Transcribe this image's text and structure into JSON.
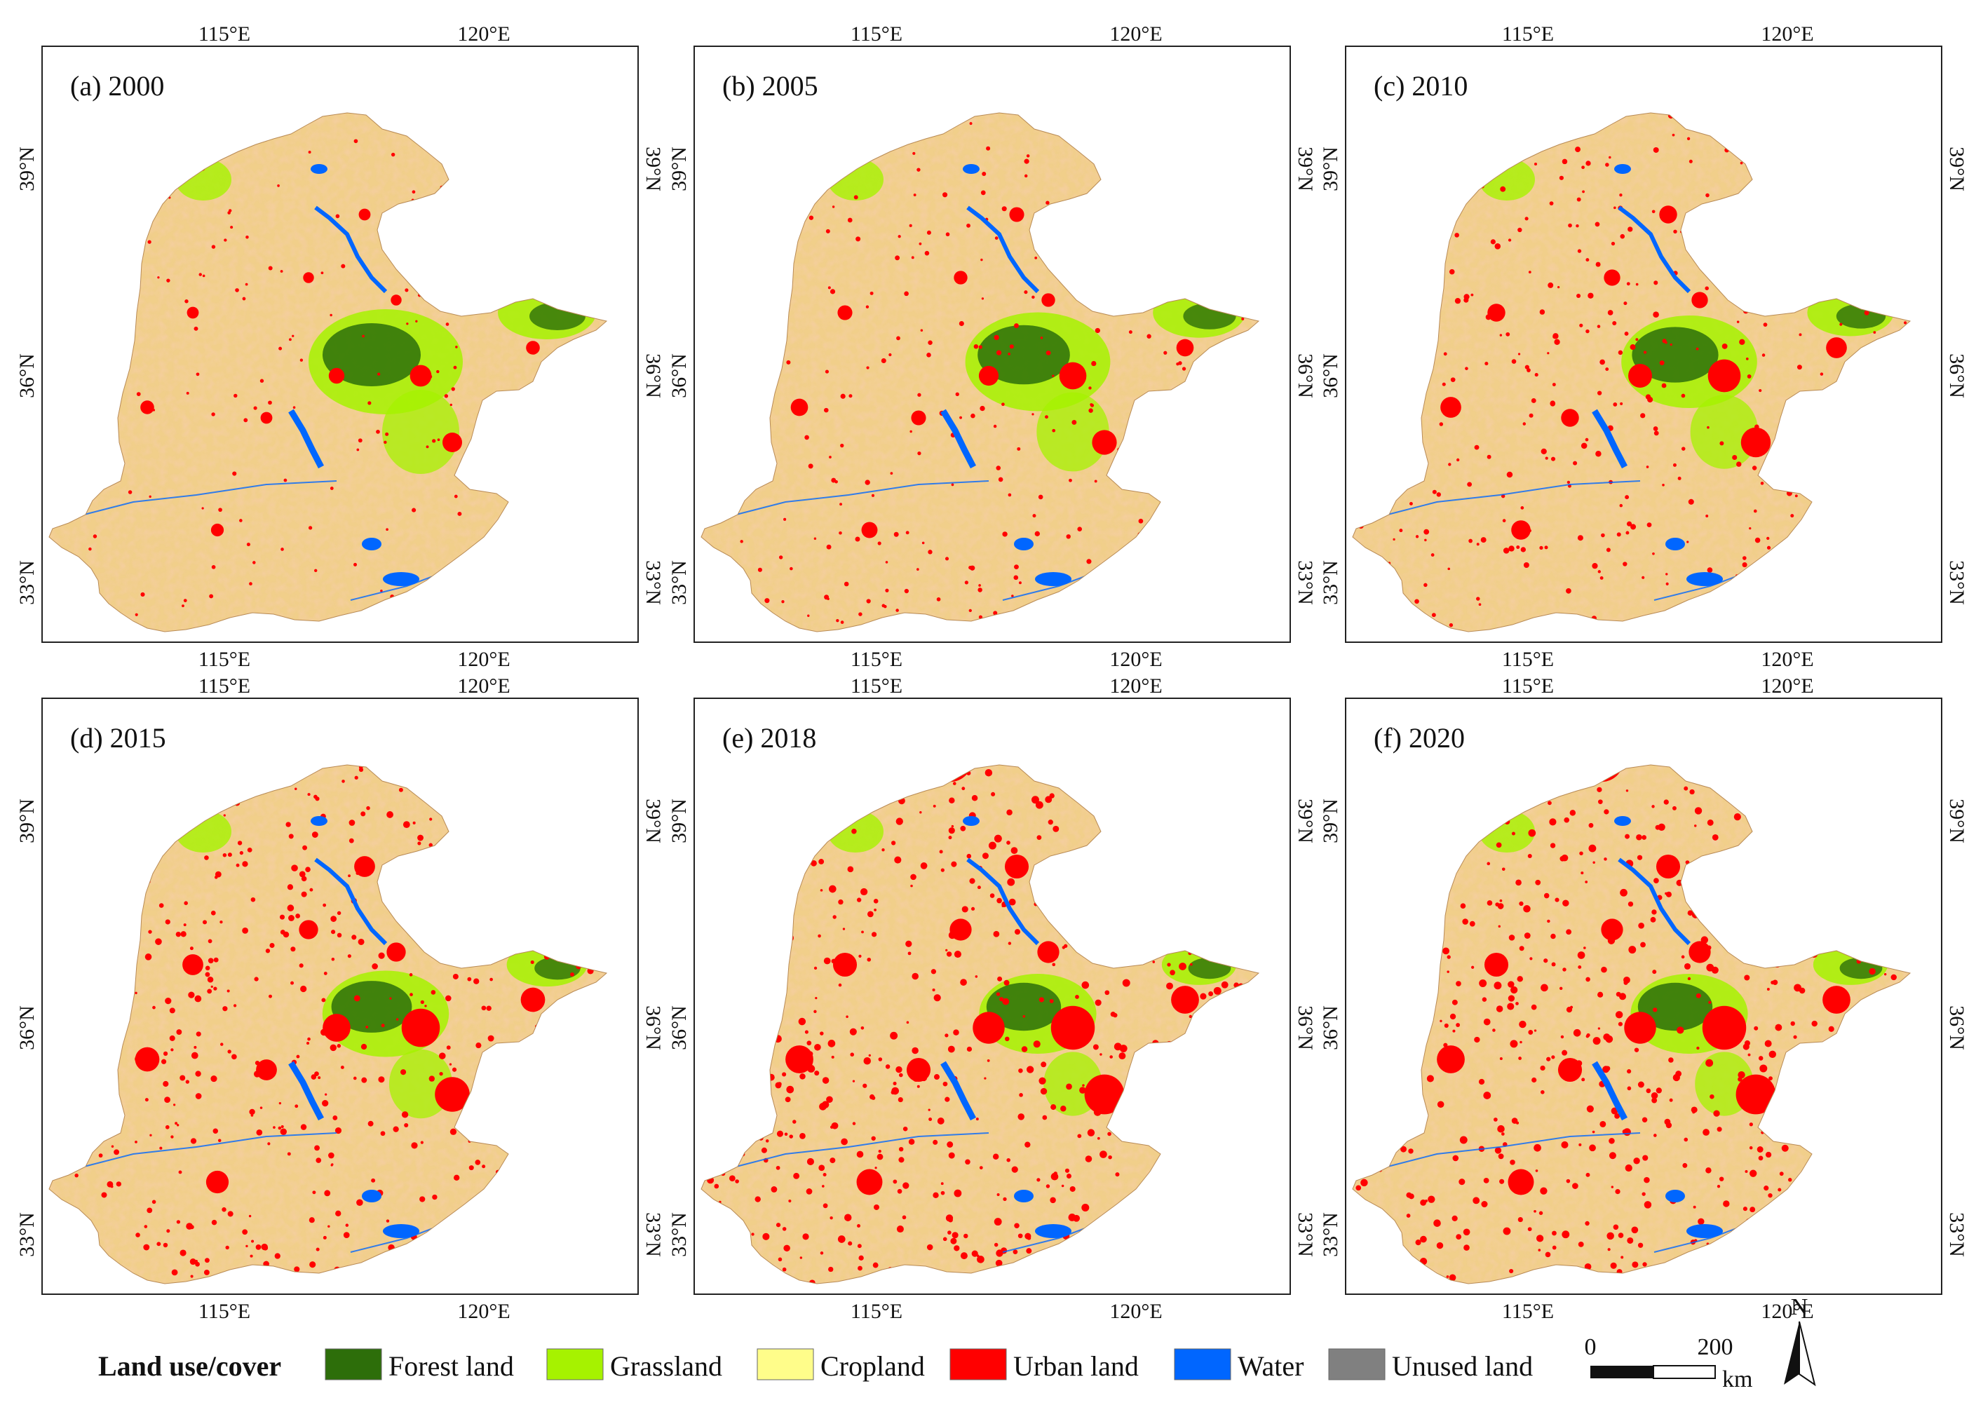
{
  "panels": [
    {
      "label": "(a) 2000",
      "urban_level": 0
    },
    {
      "label": "(b) 2005",
      "urban_level": 1
    },
    {
      "label": "(c) 2010",
      "urban_level": 2
    },
    {
      "label": "(d) 2015",
      "urban_level": 3
    },
    {
      "label": "(e) 2018",
      "urban_level": 4
    },
    {
      "label": "(f) 2020",
      "urban_level": 4
    }
  ],
  "axes": {
    "lon_ticks": [
      "115°E",
      "120°E"
    ],
    "lat_ticks": [
      "39°N",
      "36°N",
      "33°N"
    ]
  },
  "legend": {
    "title": "Land use/cover",
    "items": [
      {
        "label": "Forest land",
        "color": "#2d6e0a"
      },
      {
        "label": "Grassland",
        "color": "#a6f200"
      },
      {
        "label": "Cropland",
        "color": "#fffd8a"
      },
      {
        "label": "Urban land",
        "color": "#ff0000"
      },
      {
        "label": "Water",
        "color": "#0066ff"
      },
      {
        "label": "Unused land",
        "color": "#808080"
      }
    ]
  },
  "scale_bar": {
    "start": "0",
    "end": "200",
    "unit": "km"
  },
  "north_arrow": {
    "label": "N"
  },
  "colors": {
    "land_base": "#f1cf8a",
    "land_urbanish": "#e8b27a"
  }
}
